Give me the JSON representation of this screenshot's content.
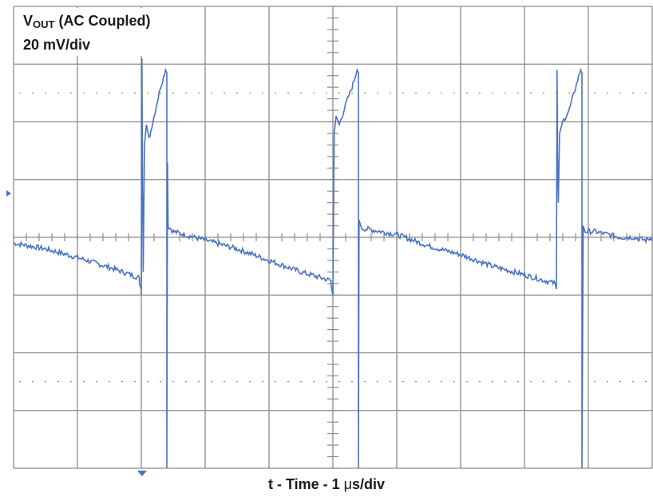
{
  "chart_data": {
    "type": "line",
    "title": "",
    "annotation": {
      "prefix": "V",
      "sub": "OUT",
      "suffix": " (AC Coupled)",
      "scale": "20 mV/div"
    },
    "xlabel": {
      "prefix": "t - Time - 1 ",
      "mu": "μ",
      "suffix": "s/div"
    },
    "divisions": {
      "x": 10,
      "y": 8
    },
    "grid": true,
    "trace_color": "#4a72c4",
    "grid_color": "#8c8c8c",
    "series": [
      {
        "name": "",
        "note": "x in divisions (0-10), y in divisions from center (+up)",
        "points": [
          [
            0.0,
            -0.1
          ],
          [
            0.5,
            -0.2
          ],
          [
            1.0,
            -0.35
          ],
          [
            1.5,
            -0.52
          ],
          [
            1.97,
            -0.7
          ],
          [
            1.97,
            -0.8
          ],
          [
            2.0,
            -0.9
          ],
          [
            2.0,
            -1.0
          ],
          [
            2.01,
            3.1
          ],
          [
            2.02,
            0.8
          ],
          [
            2.03,
            -0.6
          ],
          [
            2.05,
            1.6
          ],
          [
            2.08,
            1.95
          ],
          [
            2.12,
            1.7
          ],
          [
            2.2,
            2.1
          ],
          [
            2.3,
            2.6
          ],
          [
            2.38,
            2.9
          ],
          [
            2.4,
            2.85
          ],
          [
            2.4,
            -4.0
          ],
          [
            2.41,
            1.3
          ],
          [
            2.42,
            0.2
          ],
          [
            2.5,
            0.1
          ],
          [
            3.0,
            -0.05
          ],
          [
            3.5,
            -0.2
          ],
          [
            4.0,
            -0.4
          ],
          [
            4.5,
            -0.6
          ],
          [
            4.97,
            -0.75
          ],
          [
            4.98,
            -0.9
          ],
          [
            5.0,
            -1.0
          ],
          [
            5.02,
            1.8
          ],
          [
            5.05,
            2.1
          ],
          [
            5.1,
            1.95
          ],
          [
            5.2,
            2.3
          ],
          [
            5.3,
            2.6
          ],
          [
            5.38,
            2.9
          ],
          [
            5.4,
            2.85
          ],
          [
            5.4,
            -4.0
          ],
          [
            5.41,
            0.3
          ],
          [
            5.45,
            0.15
          ],
          [
            5.5,
            0.15
          ],
          [
            6.0,
            0.05
          ],
          [
            6.5,
            -0.15
          ],
          [
            7.0,
            -0.3
          ],
          [
            7.5,
            -0.5
          ],
          [
            8.0,
            -0.65
          ],
          [
            8.48,
            -0.8
          ],
          [
            8.5,
            -0.9
          ],
          [
            8.51,
            2.9
          ],
          [
            8.52,
            1.2
          ],
          [
            8.53,
            0.6
          ],
          [
            8.55,
            1.8
          ],
          [
            8.6,
            2.0
          ],
          [
            8.7,
            2.2
          ],
          [
            8.8,
            2.6
          ],
          [
            8.88,
            2.9
          ],
          [
            8.9,
            2.85
          ],
          [
            8.9,
            -4.0
          ],
          [
            8.92,
            0.2
          ],
          [
            8.95,
            0.1
          ],
          [
            9.1,
            0.1
          ],
          [
            9.3,
            0.05
          ],
          [
            9.5,
            0.0
          ],
          [
            9.7,
            0.0
          ],
          [
            9.9,
            -0.05
          ],
          [
            10.0,
            0.0
          ]
        ]
      }
    ]
  }
}
